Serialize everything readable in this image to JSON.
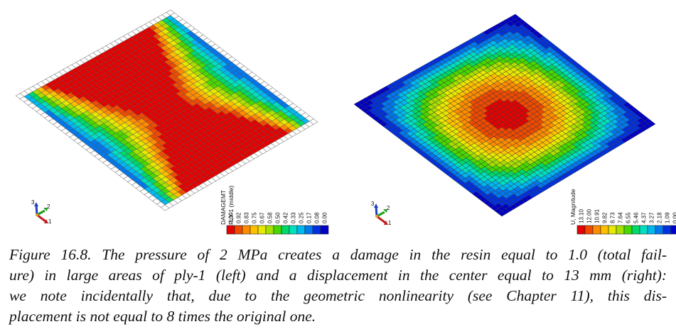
{
  "left_panel": {
    "legend_title": "DAMAGEMT",
    "legend_subtitle": "PLY-1 (middle)",
    "legend_values": [
      "1.00",
      "0.92",
      "0.83",
      "0.75",
      "0.67",
      "0.58",
      "0.50",
      "0.42",
      "0.33",
      "0.25",
      "0.17",
      "0.08",
      "0.00"
    ],
    "triad_labels": [
      "3",
      "2",
      "1"
    ]
  },
  "right_panel": {
    "legend_title": "U, Magnitude",
    "legend_values": [
      "13.10",
      "12.00",
      "10.91",
      "9.82",
      "8.73",
      "7.64",
      "6.55",
      "5.46",
      "4.37",
      "3.27",
      "2.18",
      "1.09",
      "0.00"
    ],
    "triad_labels": [
      "3",
      "2",
      "1"
    ]
  },
  "legend_colors": [
    "#e60000",
    "#f04a00",
    "#ff8c00",
    "#ffc000",
    "#e8e800",
    "#a8e000",
    "#48d800",
    "#00d868",
    "#00e0c0",
    "#00b8f0",
    "#0078f0",
    "#0030e0",
    "#0000c8"
  ],
  "caption": {
    "lines": [
      "Figure 16.8. The pressure of 2 MPa creates a damage in the resin equal to 1.0 (total fail-",
      "ure) in large areas of ply-1 (left) and a displacement in the center equal to 13 mm (right):",
      "we note incidentally that, due to the geometric nonlinearity (see Chapter 11), this dis-",
      "placement is not equal to 8 times the original one."
    ]
  }
}
